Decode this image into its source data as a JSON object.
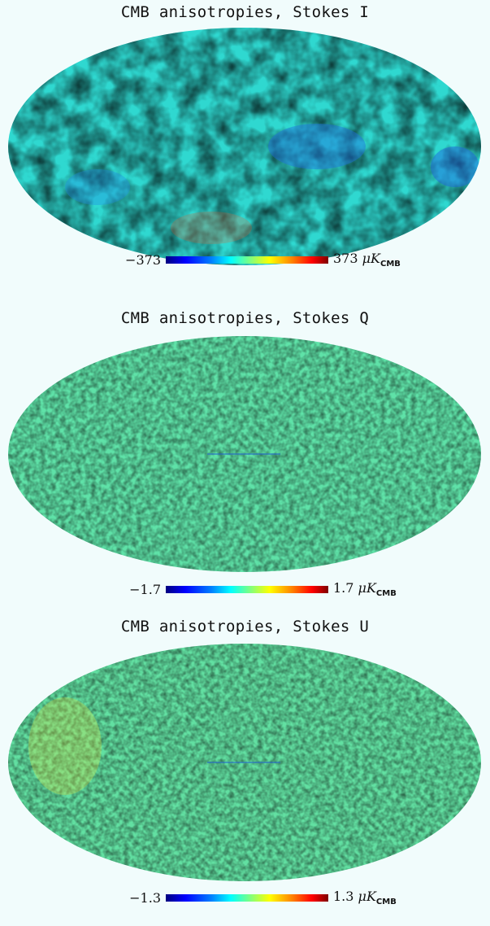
{
  "panels": [
    {
      "title": "CMB anisotropies, Stokes I",
      "colorbar": {
        "min": "−373",
        "max": "373",
        "unit_prefix": "μK",
        "unit_sub": "CMB"
      },
      "colors": {
        "base": "#2fd8d0"
      }
    },
    {
      "title": "CMB anisotropies, Stokes Q",
      "colorbar": {
        "min": "−1.7",
        "max": "1.7",
        "unit_prefix": "μK",
        "unit_sub": "CMB"
      },
      "colors": {
        "base": "#5fe2a8"
      }
    },
    {
      "title": "CMB anisotropies, Stokes U",
      "colorbar": {
        "min": "−1.3",
        "max": "1.3",
        "unit_prefix": "μK",
        "unit_sub": "CMB"
      },
      "colors": {
        "base": "#62e0a2"
      }
    }
  ]
}
